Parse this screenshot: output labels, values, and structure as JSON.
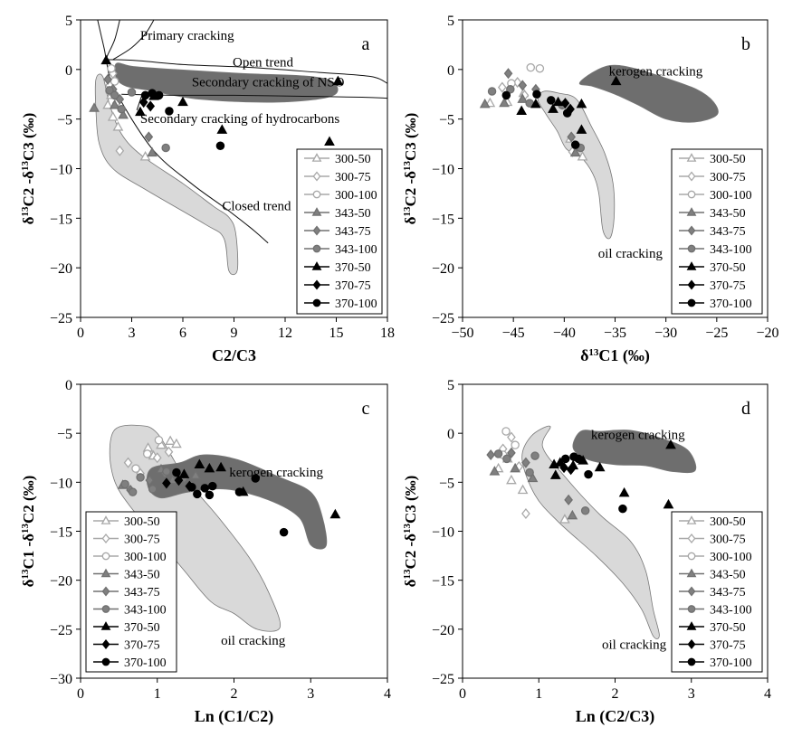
{
  "legend_entries": [
    "300-50",
    "300-75",
    "300-100",
    "343-50",
    "343-75",
    "343-100",
    "370-50",
    "370-75",
    "370-100"
  ],
  "chart_data": [
    {
      "panel": "a",
      "type": "scatter",
      "xlabel": "C2/C3",
      "ylabel": "δ13C2 -δ13C3 (‰)",
      "xlim": [
        0,
        18
      ],
      "ylim": [
        -25,
        5
      ],
      "xticks": [
        0,
        3,
        6,
        9,
        12,
        15,
        18
      ],
      "yticks": [
        5,
        0,
        -5,
        -10,
        -15,
        -20,
        -25
      ],
      "grid": false,
      "legend_position": "bottom-right",
      "annotations": [
        "Primary cracking",
        "Open trend",
        "Secondary cracking of NSO",
        "Secondary cracking of hydrocarbons",
        "Closed trend"
      ],
      "series": [
        {
          "name": "300-50",
          "points": [
            [
              1.6,
              -3.6
            ],
            [
              1.9,
              -4.8
            ],
            [
              2.2,
              -5.8
            ],
            [
              3.8,
              -8.8
            ],
            [
              1.8,
              -2.6
            ]
          ]
        },
        {
          "name": "300-75",
          "points": [
            [
              1.7,
              -1.6
            ],
            [
              2.1,
              -3.4
            ],
            [
              2.3,
              -8.2
            ],
            [
              1.9,
              -0.4
            ]
          ]
        },
        {
          "name": "300-100",
          "points": [
            [
              1.8,
              0.1
            ],
            [
              2.0,
              -1.2
            ],
            [
              1.7,
              -2.2
            ]
          ]
        },
        {
          "name": "343-50",
          "points": [
            [
              0.8,
              -3.9
            ],
            [
              2.0,
              -3.6
            ],
            [
              2.5,
              -4.6
            ],
            [
              4.2,
              -8.4
            ]
          ]
        },
        {
          "name": "343-75",
          "points": [
            [
              1.6,
              -1.0
            ],
            [
              2.3,
              -3.0
            ],
            [
              4.0,
              -6.8
            ],
            [
              1.9,
              -2.0
            ]
          ]
        },
        {
          "name": "343-100",
          "points": [
            [
              1.7,
              -2.1
            ],
            [
              2.0,
              -2.6
            ],
            [
              2.4,
              -4.0
            ],
            [
              3.0,
              -2.3
            ],
            [
              5.0,
              -7.9
            ]
          ]
        },
        {
          "name": "370-50",
          "points": [
            [
              1.5,
              0.9
            ],
            [
              3.5,
              -4.3
            ],
            [
              4.3,
              -2.7
            ],
            [
              6.0,
              -3.3
            ],
            [
              8.3,
              -6.1
            ],
            [
              14.6,
              -7.3
            ],
            [
              15.1,
              -1.2
            ]
          ]
        },
        {
          "name": "370-75",
          "points": [
            [
              3.7,
              -3.3
            ],
            [
              4.1,
              -3.7
            ]
          ]
        },
        {
          "name": "370-100",
          "points": [
            [
              3.8,
              -2.6
            ],
            [
              4.6,
              -2.6
            ],
            [
              5.2,
              -4.2
            ],
            [
              8.2,
              -7.7
            ],
            [
              4.2,
              -2.4
            ]
          ]
        }
      ]
    },
    {
      "panel": "b",
      "type": "scatter",
      "xlabel": "δ13C1 (‰)",
      "ylabel": "δ13C2 -δ13C3 (‰)",
      "xlim": [
        -50,
        -20
      ],
      "ylim": [
        -25,
        5
      ],
      "xticks": [
        -50,
        -45,
        -40,
        -35,
        -30,
        -25,
        -20
      ],
      "yticks": [
        5,
        0,
        -5,
        -10,
        -15,
        -20,
        -25
      ],
      "grid": false,
      "legend_position": "bottom-right",
      "annotations": [
        "kerogen cracking",
        "oil cracking"
      ],
      "series": [
        {
          "name": "300-50",
          "points": [
            [
              -47.3,
              -3.4
            ],
            [
              -45.6,
              -3.3
            ],
            [
              -39.4,
              -7.0
            ],
            [
              -38.2,
              -8.8
            ],
            [
              -44.0,
              -2.4
            ]
          ]
        },
        {
          "name": "300-75",
          "points": [
            [
              -46.1,
              -1.8
            ],
            [
              -43.9,
              -2.6
            ],
            [
              -39.2,
              -8.3
            ],
            [
              -44.6,
              -1.3
            ]
          ]
        },
        {
          "name": "300-100",
          "points": [
            [
              -43.3,
              0.2
            ],
            [
              -42.4,
              0.1
            ],
            [
              -45.2,
              -1.4
            ]
          ]
        },
        {
          "name": "343-50",
          "points": [
            [
              -47.8,
              -3.5
            ],
            [
              -45.9,
              -3.4
            ],
            [
              -44.1,
              -3.0
            ],
            [
              -38.9,
              -8.4
            ]
          ]
        },
        {
          "name": "343-75",
          "points": [
            [
              -45.5,
              -0.4
            ],
            [
              -42.8,
              -2.0
            ],
            [
              -39.3,
              -6.8
            ],
            [
              -44.1,
              -1.6
            ]
          ]
        },
        {
          "name": "343-100",
          "points": [
            [
              -47.1,
              -2.2
            ],
            [
              -45.3,
              -2.0
            ],
            [
              -43.4,
              -3.4
            ],
            [
              -40.2,
              -3.6
            ],
            [
              -38.4,
              -7.9
            ]
          ]
        },
        {
          "name": "370-50",
          "points": [
            [
              -44.2,
              -4.2
            ],
            [
              -42.8,
              -3.5
            ],
            [
              -40.6,
              -3.3
            ],
            [
              -38.3,
              -6.1
            ],
            [
              -38.3,
              -3.5
            ],
            [
              -34.9,
              -1.2
            ],
            [
              -41.1,
              -4.0
            ]
          ]
        },
        {
          "name": "370-75",
          "points": [
            [
              -39.9,
              -3.4
            ],
            [
              -39.4,
              -4.0
            ]
          ]
        },
        {
          "name": "370-100",
          "points": [
            [
              -45.7,
              -2.6
            ],
            [
              -42.7,
              -2.5
            ],
            [
              -41.3,
              -3.1
            ],
            [
              -38.9,
              -7.6
            ],
            [
              -39.7,
              -4.4
            ]
          ]
        }
      ]
    },
    {
      "panel": "c",
      "type": "scatter",
      "xlabel": "Ln (C1/C2)",
      "ylabel": "δ13C1 -δ13C2 (‰)",
      "xlim": [
        0,
        4
      ],
      "ylim": [
        -30,
        0
      ],
      "xticks": [
        0,
        1,
        2,
        3,
        4
      ],
      "yticks": [
        0,
        -5,
        -10,
        -15,
        -20,
        -25,
        -30
      ],
      "grid": false,
      "legend_position": "bottom-left",
      "annotations": [
        "kerogen cracking",
        "oil cracking"
      ],
      "series": [
        {
          "name": "300-50",
          "points": [
            [
              0.88,
              -6.5
            ],
            [
              1.05,
              -6.2
            ],
            [
              1.17,
              -5.8
            ],
            [
              1.25,
              -6.1
            ],
            [
              0.95,
              -7.3
            ]
          ]
        },
        {
          "name": "300-75",
          "points": [
            [
              0.62,
              -8.0
            ],
            [
              0.78,
              -9.1
            ],
            [
              1.0,
              -7.5
            ],
            [
              1.15,
              -6.9
            ]
          ]
        },
        {
          "name": "300-100",
          "points": [
            [
              1.02,
              -5.7
            ],
            [
              0.87,
              -7.1
            ],
            [
              0.72,
              -8.6
            ]
          ]
        },
        {
          "name": "343-50",
          "points": [
            [
              0.55,
              -10.3
            ],
            [
              1.05,
              -8.7
            ],
            [
              1.2,
              -9.8
            ],
            [
              1.5,
              -9.3
            ]
          ]
        },
        {
          "name": "343-75",
          "points": [
            [
              0.65,
              -10.8
            ],
            [
              0.9,
              -9.8
            ],
            [
              1.1,
              -9.1
            ],
            [
              1.35,
              -9.6
            ]
          ]
        },
        {
          "name": "343-100",
          "points": [
            [
              0.58,
              -10.2
            ],
            [
              0.78,
              -9.5
            ],
            [
              0.94,
              -10.7
            ],
            [
              1.12,
              -8.9
            ],
            [
              0.68,
              -11.0
            ]
          ]
        },
        {
          "name": "370-50",
          "points": [
            [
              1.35,
              -9.2
            ],
            [
              1.55,
              -8.2
            ],
            [
              1.68,
              -8.6
            ],
            [
              1.83,
              -8.5
            ],
            [
              2.12,
              -11.0
            ],
            [
              3.32,
              -13.3
            ]
          ]
        },
        {
          "name": "370-75",
          "points": [
            [
              1.12,
              -10.1
            ],
            [
              1.28,
              -9.8
            ],
            [
              1.42,
              -10.4
            ]
          ]
        },
        {
          "name": "370-100",
          "points": [
            [
              1.45,
              -10.5
            ],
            [
              1.52,
              -11.2
            ],
            [
              1.62,
              -10.6
            ],
            [
              1.68,
              -11.3
            ],
            [
              1.72,
              -10.4
            ],
            [
              2.07,
              -11.0
            ],
            [
              2.28,
              -9.6
            ],
            [
              2.65,
              -15.1
            ],
            [
              1.25,
              -9.0
            ]
          ]
        }
      ]
    },
    {
      "panel": "d",
      "type": "scatter",
      "xlabel": "Ln (C2/C3)",
      "ylabel": "δ13C2 -δ13C3 (‰)",
      "xlim": [
        0,
        4
      ],
      "ylim": [
        -25,
        5
      ],
      "xticks": [
        0,
        1,
        2,
        3,
        4
      ],
      "yticks": [
        5,
        0,
        -5,
        -10,
        -15,
        -20,
        -25
      ],
      "grid": false,
      "legend_position": "bottom-right",
      "annotations": [
        "kerogen cracking",
        "oil cracking"
      ],
      "series": [
        {
          "name": "300-50",
          "points": [
            [
              0.47,
              -3.6
            ],
            [
              0.64,
              -4.8
            ],
            [
              0.79,
              -5.8
            ],
            [
              1.34,
              -8.8
            ],
            [
              0.59,
              -2.6
            ]
          ]
        },
        {
          "name": "300-75",
          "points": [
            [
              0.53,
              -1.6
            ],
            [
              0.74,
              -3.4
            ],
            [
              0.83,
              -8.2
            ],
            [
              0.64,
              -0.4
            ]
          ]
        },
        {
          "name": "300-100",
          "points": [
            [
              0.57,
              0.2
            ],
            [
              0.69,
              -1.2
            ],
            [
              0.53,
              -2.2
            ]
          ]
        },
        {
          "name": "343-50",
          "points": [
            [
              0.42,
              -3.9
            ],
            [
              0.69,
              -3.6
            ],
            [
              0.92,
              -4.6
            ],
            [
              1.44,
              -8.4
            ]
          ]
        },
        {
          "name": "343-75",
          "points": [
            [
              0.37,
              -2.2
            ],
            [
              0.83,
              -3.0
            ],
            [
              1.39,
              -6.8
            ],
            [
              0.64,
              -2.0
            ]
          ]
        },
        {
          "name": "343-100",
          "points": [
            [
              0.47,
              -2.1
            ],
            [
              0.58,
              -2.6
            ],
            [
              0.88,
              -4.0
            ],
            [
              0.95,
              -2.3
            ],
            [
              1.61,
              -7.9
            ]
          ]
        },
        {
          "name": "370-50",
          "points": [
            [
              1.2,
              -3.2
            ],
            [
              1.28,
              -3.0
            ],
            [
              1.45,
              -3.3
            ],
            [
              1.58,
              -2.8
            ],
            [
              1.8,
              -3.5
            ],
            [
              2.12,
              -6.1
            ],
            [
              2.7,
              -7.3
            ],
            [
              2.73,
              -1.2
            ],
            [
              1.22,
              -4.3
            ]
          ]
        },
        {
          "name": "370-75",
          "points": [
            [
              1.33,
              -3.5
            ],
            [
              1.42,
              -3.7
            ]
          ]
        },
        {
          "name": "370-100",
          "points": [
            [
              1.35,
              -2.6
            ],
            [
              1.52,
              -2.6
            ],
            [
              1.65,
              -4.2
            ],
            [
              2.1,
              -7.7
            ],
            [
              1.46,
              -2.4
            ]
          ]
        }
      ]
    }
  ]
}
